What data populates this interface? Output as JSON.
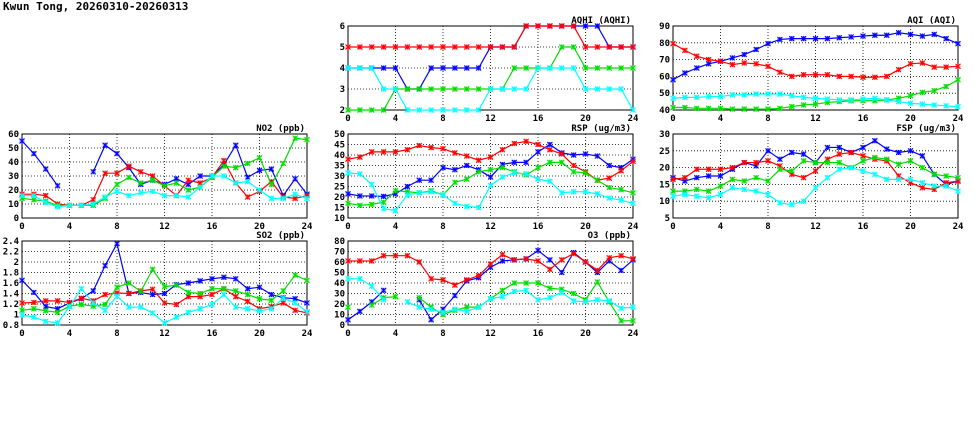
{
  "title": "Kwun Tong, 20260310-20260313",
  "chart_data": [
    {
      "id": "no2",
      "type": "line",
      "title": "NO2 (ppb)",
      "xlim": [
        0,
        24
      ],
      "xticks": [
        0,
        4,
        8,
        12,
        16,
        20,
        24
      ],
      "ylim": [
        0,
        60
      ],
      "yticks": [
        0,
        10,
        20,
        30,
        40,
        50,
        60
      ],
      "grid": true,
      "series": [
        {
          "color": "#0000ff",
          "values": [
            55,
            46,
            35,
            23,
            null,
            null,
            33,
            52,
            46,
            36,
            24,
            27,
            24,
            28,
            24,
            30,
            30,
            38,
            52,
            29,
            34,
            35,
            16,
            28,
            17
          ]
        },
        {
          "color": "#ff0000",
          "values": [
            17,
            17,
            16,
            10,
            9,
            9,
            13,
            32,
            32,
            37,
            33,
            30,
            23,
            16,
            27,
            25,
            29,
            41,
            25,
            15,
            19,
            26,
            15,
            14,
            16
          ]
        },
        {
          "color": "#00dd00",
          "values": [
            14,
            13,
            12,
            9,
            9,
            9,
            9,
            14,
            24,
            29,
            25,
            27,
            23,
            25,
            20,
            22,
            29,
            37,
            36,
            39,
            43,
            24,
            39,
            57,
            56
          ]
        },
        {
          "color": "#00ffff",
          "values": [
            16,
            16,
            11,
            8,
            9,
            9,
            10,
            15,
            19,
            16,
            18,
            19,
            16,
            16,
            15,
            22,
            30,
            30,
            25,
            26,
            20,
            14,
            14,
            17,
            14
          ]
        }
      ]
    },
    {
      "id": "so2",
      "type": "line",
      "title": "SO2 (ppb)",
      "xlim": [
        0,
        24
      ],
      "xticks": [
        0,
        4,
        8,
        12,
        16,
        20,
        24
      ],
      "ylim": [
        0.8,
        2.4
      ],
      "yticks": [
        0.8,
        1.0,
        1.2,
        1.4,
        1.6,
        1.8,
        2.0,
        2.2,
        2.4
      ],
      "grid": true,
      "series": [
        {
          "color": "#0000ff",
          "values": [
            1.65,
            1.42,
            1.15,
            1.11,
            1.22,
            1.3,
            1.45,
            1.93,
            2.35,
            1.4,
            1.42,
            1.38,
            1.4,
            1.57,
            1.6,
            1.64,
            1.68,
            1.71,
            1.68,
            1.49,
            1.52,
            1.38,
            1.32,
            1.3,
            1.22
          ]
        },
        {
          "color": "#ff0000",
          "values": [
            1.22,
            1.23,
            1.26,
            1.26,
            1.23,
            1.31,
            1.26,
            1.38,
            1.41,
            1.4,
            1.45,
            1.48,
            1.22,
            1.19,
            1.34,
            1.34,
            1.38,
            1.49,
            1.34,
            1.25,
            1.11,
            1.15,
            1.22,
            1.08,
            1.03
          ]
        },
        {
          "color": "#00dd00",
          "values": [
            1.08,
            1.11,
            1.07,
            1.04,
            1.16,
            1.19,
            1.16,
            1.19,
            1.52,
            1.6,
            1.44,
            1.86,
            1.53,
            1.56,
            1.42,
            1.4,
            1.49,
            1.49,
            1.45,
            1.38,
            1.3,
            1.27,
            1.45,
            1.75,
            1.65
          ]
        },
        {
          "color": "#00ffff",
          "values": [
            0.99,
            0.95,
            0.87,
            0.84,
            1.15,
            1.49,
            1.22,
            1.08,
            1.35,
            1.14,
            1.14,
            1.03,
            0.84,
            0.95,
            1.04,
            1.11,
            1.19,
            1.38,
            1.14,
            1.11,
            1.07,
            1.11,
            1.31,
            1.22,
            1.05
          ]
        }
      ]
    },
    {
      "id": "aqhi",
      "type": "line",
      "title": "AQHI (AQHI)",
      "xlim": [
        0,
        24
      ],
      "xticks": [
        0,
        4,
        8,
        12,
        16,
        20,
        24
      ],
      "ylim": [
        2,
        6
      ],
      "yticks": [
        2,
        3,
        4,
        5,
        6
      ],
      "grid": true,
      "series": [
        {
          "color": "#0000ff",
          "values": [
            4,
            4,
            4,
            4,
            4,
            3,
            3,
            4,
            4,
            4,
            4,
            4,
            5,
            5,
            5,
            6,
            6,
            6,
            6,
            6,
            6,
            6,
            5,
            5,
            5
          ]
        },
        {
          "color": "#ff0000",
          "values": [
            5,
            5,
            5,
            5,
            5,
            5,
            5,
            5,
            5,
            5,
            5,
            5,
            5,
            5,
            5,
            6,
            6,
            6,
            6,
            6,
            5,
            5,
            5,
            5,
            5
          ]
        },
        {
          "color": "#00dd00",
          "values": [
            2,
            2,
            2,
            2,
            3,
            3,
            3,
            3,
            3,
            3,
            3,
            3,
            3,
            3,
            4,
            4,
            4,
            4,
            5,
            5,
            4,
            4,
            4,
            4,
            4
          ]
        },
        {
          "color": "#00ffff",
          "values": [
            4,
            4,
            4,
            3,
            3,
            2,
            2,
            2,
            2,
            2,
            2,
            2,
            3,
            3,
            3,
            3,
            4,
            4,
            4,
            4,
            3,
            3,
            3,
            3,
            2
          ]
        }
      ]
    },
    {
      "id": "rsp",
      "type": "line",
      "title": "RSP (ug/m3)",
      "xlim": [
        0,
        24
      ],
      "xticks": [
        0,
        4,
        8,
        12,
        16,
        20,
        24
      ],
      "ylim": [
        10,
        50
      ],
      "yticks": [
        10,
        15,
        20,
        25,
        30,
        35,
        40,
        45,
        50
      ],
      "grid": true,
      "series": [
        {
          "color": "#0000ff",
          "values": [
            21.5,
            20.5,
            20.5,
            20.3,
            21.5,
            25,
            28,
            28,
            34,
            33,
            35,
            33,
            29.5,
            35.5,
            36.5,
            36.5,
            41.5,
            45,
            41,
            40,
            40.5,
            39.5,
            35,
            34,
            38
          ]
        },
        {
          "color": "#ff0000",
          "values": [
            38,
            39,
            41.5,
            41.5,
            41.5,
            42.5,
            44.5,
            43.5,
            43,
            41,
            39.5,
            37.5,
            39,
            42.5,
            45.5,
            46.5,
            45,
            42.5,
            40.5,
            35,
            32,
            28,
            29,
            32.5,
            37
          ]
        },
        {
          "color": "#00dd00",
          "values": [
            17,
            16,
            16.5,
            17.5,
            23,
            22.5,
            22,
            23,
            21,
            27,
            28.5,
            32,
            33,
            34,
            32,
            30.5,
            34,
            36.5,
            36.5,
            32,
            31.5,
            28,
            24.5,
            23.5,
            22
          ]
        },
        {
          "color": "#00ffff",
          "values": [
            31.5,
            31,
            26,
            14.5,
            13.5,
            21,
            22,
            22.5,
            21,
            17,
            15.5,
            15,
            25.5,
            29.5,
            31.5,
            31,
            28.5,
            27.5,
            22,
            22.5,
            22.5,
            21.5,
            19.5,
            18.5,
            17
          ]
        }
      ]
    },
    {
      "id": "o3",
      "type": "line",
      "title": "O3 (ppb)",
      "xlim": [
        0,
        24
      ],
      "xticks": [
        0,
        4,
        8,
        12,
        16,
        20,
        24
      ],
      "ylim": [
        0,
        80
      ],
      "yticks": [
        0,
        10,
        20,
        30,
        40,
        50,
        60,
        70,
        80
      ],
      "grid": true,
      "series": [
        {
          "color": "#0000ff",
          "values": [
            5,
            13,
            22,
            33,
            null,
            null,
            24,
            5,
            15,
            28,
            42,
            45,
            55,
            61,
            62,
            63,
            71,
            62,
            50,
            69,
            60,
            50,
            61,
            52,
            62
          ]
        },
        {
          "color": "#ff0000",
          "values": [
            61,
            61,
            61,
            66,
            66,
            66,
            60,
            44,
            43,
            38,
            43,
            47,
            58,
            67,
            62,
            63,
            61,
            53,
            62,
            68,
            60,
            52,
            64,
            66,
            63
          ]
        },
        {
          "color": "#00dd00",
          "values": [
            17,
            null,
            19,
            26,
            27,
            null,
            26,
            17,
            10,
            14,
            17,
            17,
            25,
            33,
            40,
            40,
            40,
            35,
            34,
            30,
            24,
            41,
            22,
            4,
            4
          ]
        },
        {
          "color": "#00ffff",
          "values": [
            44,
            44,
            37,
            24,
            null,
            22,
            17,
            15,
            12,
            15,
            13,
            17,
            25,
            27,
            32,
            33,
            24,
            26,
            31,
            23,
            22,
            24,
            23,
            16,
            17
          ]
        }
      ]
    },
    {
      "id": "aqi",
      "type": "line",
      "title": "AQI (AQI)",
      "xlim": [
        0,
        24
      ],
      "xticks": [
        0,
        4,
        8,
        12,
        16,
        20,
        24
      ],
      "ylim": [
        40,
        90
      ],
      "yticks": [
        40,
        50,
        60,
        70,
        80,
        90
      ],
      "grid": true,
      "series": [
        {
          "color": "#0000ff",
          "values": [
            58,
            62,
            65,
            67.5,
            69,
            71,
            73,
            76,
            79.5,
            82,
            82.5,
            82.5,
            82.5,
            82.5,
            83,
            83.5,
            84,
            84.5,
            84.5,
            86,
            85,
            84,
            85,
            82.5,
            79.5
          ]
        },
        {
          "color": "#ff0000",
          "values": [
            79.5,
            75.5,
            72,
            70,
            69,
            67,
            68,
            67.5,
            66,
            62.5,
            60,
            61,
            61,
            61,
            60,
            60,
            59.5,
            59.5,
            60,
            64,
            67.5,
            68,
            65.5,
            65.5,
            66
          ]
        },
        {
          "color": "#00dd00",
          "values": [
            41.5,
            41.5,
            41,
            41,
            41,
            40.5,
            40.5,
            40.5,
            40.5,
            41,
            42,
            43,
            43.5,
            44.5,
            45,
            45.5,
            45.5,
            45.5,
            46,
            47,
            48.5,
            50.5,
            51.5,
            54,
            58
          ]
        },
        {
          "color": "#00ffff",
          "values": [
            47,
            47.5,
            47.5,
            48,
            48,
            49,
            49,
            49.5,
            49.5,
            49.5,
            48.5,
            47.5,
            47,
            46.5,
            46,
            46,
            46.5,
            47,
            46,
            45,
            44,
            43.5,
            43,
            42.5,
            42
          ]
        }
      ]
    },
    {
      "id": "fsp",
      "type": "line",
      "title": "FSP (ug/m3)",
      "xlim": [
        0,
        24
      ],
      "xticks": [
        0,
        4,
        8,
        12,
        16,
        20,
        24
      ],
      "ylim": [
        5,
        30
      ],
      "yticks": [
        5,
        10,
        15,
        20,
        25,
        30
      ],
      "grid": true,
      "series": [
        {
          "color": "#0000ff",
          "values": [
            17,
            16,
            17,
            17.5,
            17.5,
            19.5,
            21.5,
            20.5,
            25,
            22.5,
            24.5,
            24,
            21.5,
            26,
            26,
            24.5,
            26,
            28,
            25.5,
            24.5,
            25,
            23.5,
            18,
            15,
            16
          ]
        },
        {
          "color": "#ff0000",
          "values": [
            16.5,
            17,
            19.5,
            19.5,
            19.5,
            20,
            21.5,
            21.5,
            22,
            20.5,
            18,
            17,
            19,
            22.5,
            24,
            24.5,
            23.5,
            22.5,
            22,
            17.5,
            15.5,
            14,
            13.5,
            15.5,
            16
          ]
        },
        {
          "color": "#00dd00",
          "values": [
            13,
            13,
            13.5,
            13,
            14.5,
            16.5,
            16,
            17,
            16,
            19.5,
            19,
            22,
            21.5,
            21.5,
            21.5,
            20,
            22,
            23,
            22.5,
            21,
            22,
            20,
            18,
            17.5,
            17
          ]
        },
        {
          "color": "#00ffff",
          "values": [
            11.5,
            12,
            11.5,
            11,
            12,
            14,
            13.5,
            13,
            12,
            9.5,
            9,
            10,
            14,
            17,
            19.5,
            20,
            19,
            18,
            16.5,
            16.5,
            16.5,
            15.5,
            14.5,
            14.5,
            13
          ]
        }
      ]
    }
  ]
}
